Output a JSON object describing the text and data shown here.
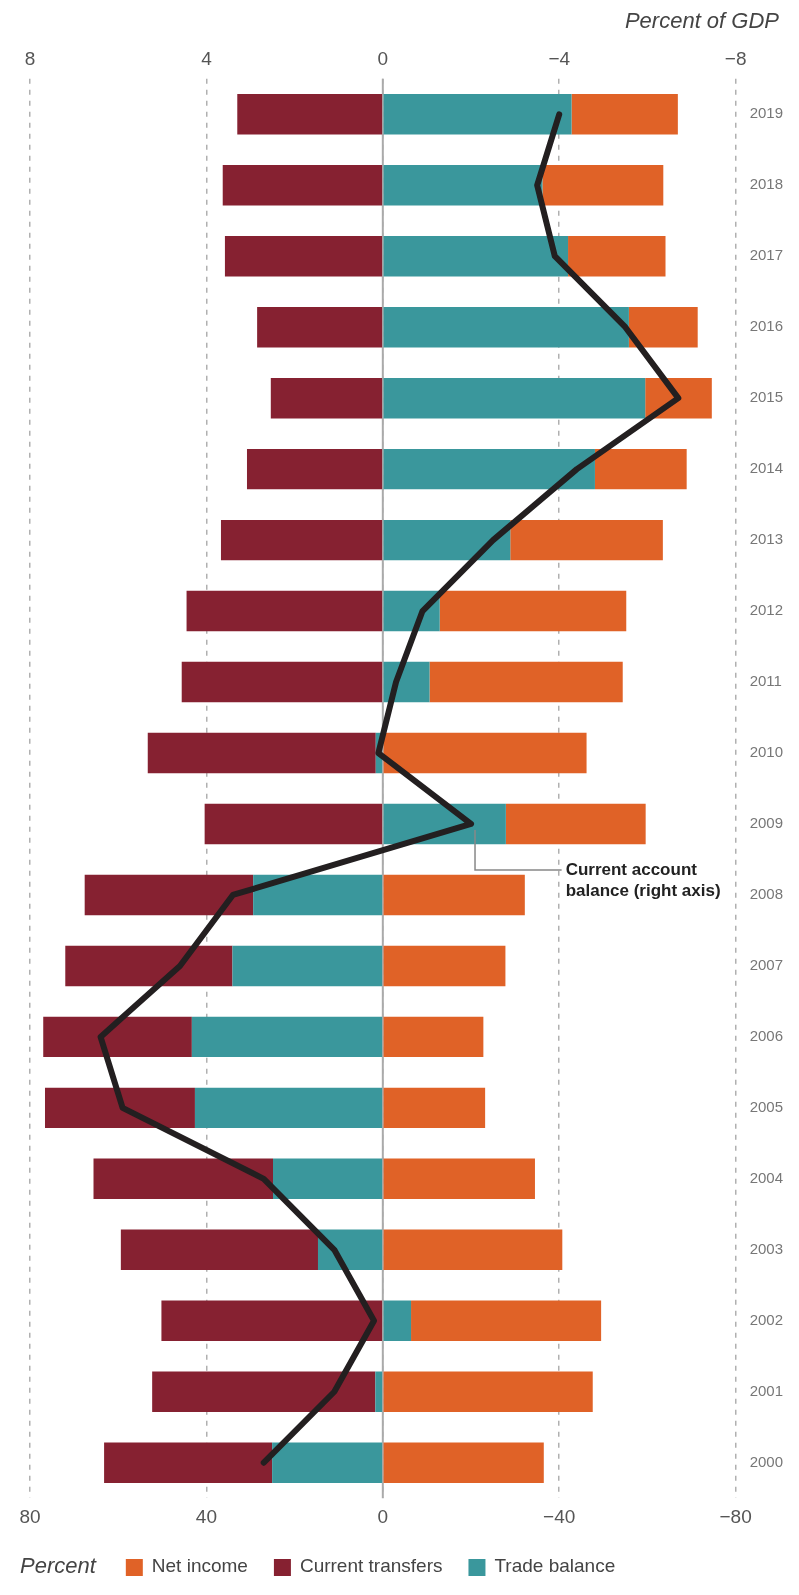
{
  "chart_data": {
    "type": "bar",
    "stacked": true,
    "orientation": "horizontal",
    "xlabel": "Percent",
    "x2label": "Percent of GDP",
    "categories": [
      "2019",
      "2018",
      "2017",
      "2016",
      "2015",
      "2014",
      "2013",
      "2012",
      "2011",
      "2010",
      "2009",
      "2008",
      "2007",
      "2006",
      "2005",
      "2004",
      "2003",
      "2002",
      "2001",
      "2000"
    ],
    "series": [
      {
        "name": "Trade balance",
        "color": "#3a979c",
        "values": [
          -42.8,
          -36.2,
          -42.0,
          -55.8,
          -59.5,
          -48.1,
          -28.9,
          -12.9,
          -10.6,
          1.6,
          -27.9,
          29.4,
          34.1,
          43.3,
          42.6,
          24.9,
          14.7,
          -6.4,
          1.7,
          25.1
        ]
      },
      {
        "name": "Current transfers",
        "color": "#862131",
        "values": [
          33.0,
          36.3,
          35.8,
          28.5,
          25.4,
          30.8,
          36.7,
          44.5,
          45.6,
          51.7,
          40.4,
          38.2,
          37.9,
          33.7,
          34.0,
          40.7,
          44.7,
          50.2,
          50.6,
          38.1
        ]
      },
      {
        "name": "Net income",
        "color": "#e06227",
        "values": [
          -24.1,
          -27.4,
          -22.1,
          -15.6,
          -15.1,
          -20.8,
          -34.6,
          -42.3,
          -43.8,
          -46.2,
          -31.7,
          -32.2,
          -27.8,
          -22.8,
          -23.2,
          -34.5,
          -40.7,
          -43.1,
          -47.6,
          -36.5
        ]
      },
      {
        "name": "Current account balance (right axis)",
        "type": "line",
        "axis": "x2",
        "color": "#231f20",
        "values": [
          -4.0,
          -3.5,
          -3.9,
          -5.5,
          -6.7,
          -4.4,
          -2.5,
          -0.9,
          -0.3,
          0.1,
          -2.0,
          3.4,
          4.6,
          6.4,
          5.9,
          2.7,
          1.1,
          0.2,
          1.1,
          2.7
        ]
      }
    ],
    "xlim": [
      80,
      -80
    ],
    "xticks": [
      80,
      40,
      0,
      {
        "value": -40,
        "label": "−40"
      },
      {
        "value": -80,
        "label": "−80"
      }
    ],
    "x2lim": [
      8,
      -8
    ],
    "x2ticks": [
      8,
      4,
      0,
      {
        "value": -4,
        "label": "−4"
      },
      {
        "value": -8,
        "label": "−8"
      }
    ],
    "ref_lines": [
      {
        "axis": "x",
        "value": 0,
        "color": "#aaaaaa",
        "line_style": "solid"
      }
    ],
    "grid": "x",
    "marker": "none",
    "line_style": "solid",
    "legend": "bottom left"
  }
}
